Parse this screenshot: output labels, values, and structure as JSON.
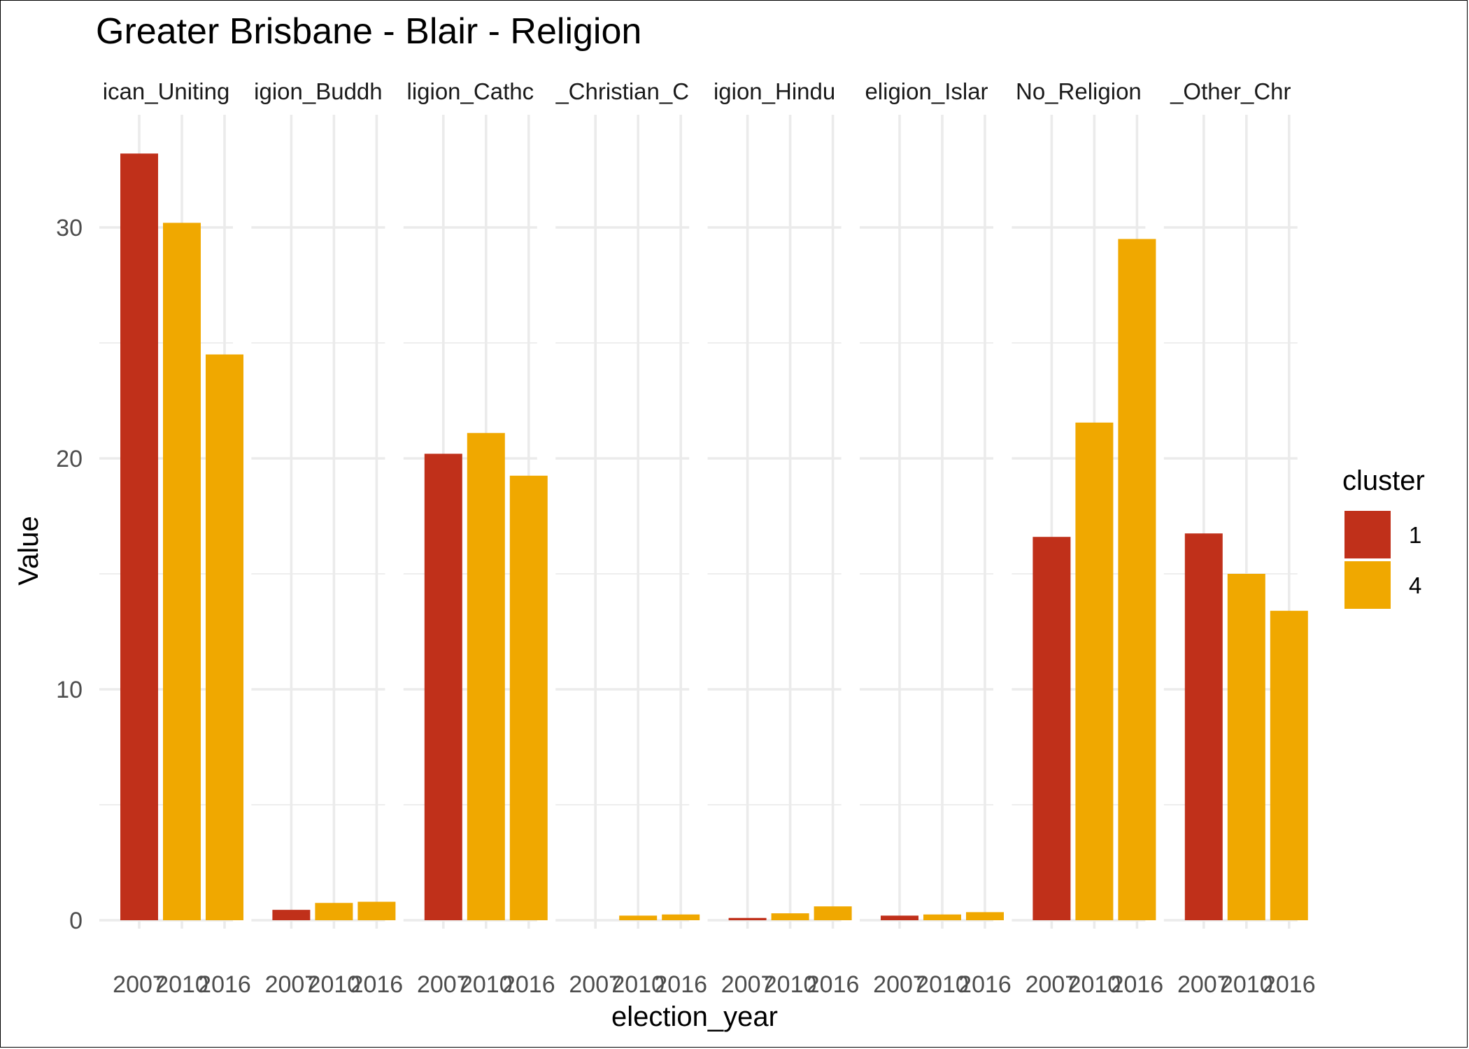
{
  "chart_data": {
    "type": "bar",
    "title": "Greater Brisbane - Blair - Religion",
    "xlabel": "election_year",
    "ylabel": "Value",
    "ylim": [
      0,
      34
    ],
    "y_ticks": [
      "0",
      "10",
      "20",
      "30"
    ],
    "y_tick_values": [
      0,
      10,
      20,
      30
    ],
    "categories": [
      "2007",
      "2010",
      "2016"
    ],
    "legend": {
      "title": "cluster",
      "placement": "right",
      "entries": [
        {
          "label": "1",
          "color": "#C0301A"
        },
        {
          "label": "4",
          "color": "#F0A800"
        }
      ]
    },
    "panels": [
      {
        "label": "ican_Uniting",
        "values": [
          33.2,
          30.2,
          24.5
        ],
        "cluster": [
          "1",
          "4",
          "4"
        ]
      },
      {
        "label": "igion_Buddh",
        "values": [
          0.45,
          0.75,
          0.8
        ],
        "cluster": [
          "1",
          "4",
          "4"
        ]
      },
      {
        "label": "ligion_Cathc",
        "values": [
          20.2,
          21.1,
          19.25
        ],
        "cluster": [
          "1",
          "4",
          "4"
        ]
      },
      {
        "label": "_Christian_C",
        "values": [
          0.0,
          0.2,
          0.25
        ],
        "cluster": [
          "1",
          "4",
          "4"
        ]
      },
      {
        "label": "igion_Hindu",
        "values": [
          0.1,
          0.3,
          0.6
        ],
        "cluster": [
          "1",
          "4",
          "4"
        ]
      },
      {
        "label": "eligion_Islar",
        "values": [
          0.2,
          0.25,
          0.35
        ],
        "cluster": [
          "1",
          "4",
          "4"
        ]
      },
      {
        "label": "No_Religion",
        "values": [
          16.6,
          21.55,
          29.5
        ],
        "cluster": [
          "1",
          "4",
          "4"
        ]
      },
      {
        "label": "_Other_Chr",
        "values": [
          16.75,
          15.0,
          13.4
        ],
        "cluster": [
          "1",
          "4",
          "4"
        ]
      }
    ]
  }
}
